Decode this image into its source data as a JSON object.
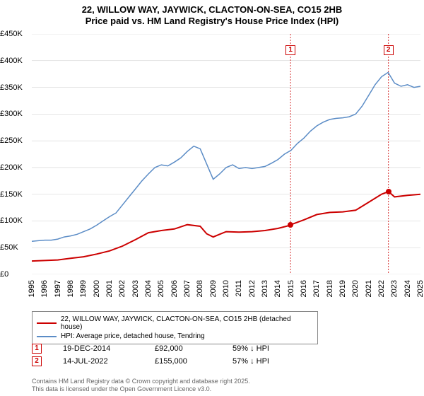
{
  "title": {
    "line1": "22, WILLOW WAY, JAYWICK, CLACTON-ON-SEA, CO15 2HB",
    "line2": "Price paid vs. HM Land Registry's House Price Index (HPI)",
    "fontsize": 13,
    "color": "#000000"
  },
  "chart": {
    "type": "line",
    "background_color": "#ffffff",
    "grid_color": "#cccccc",
    "ylim": [
      0,
      450000
    ],
    "ytick_step": 50000,
    "y_tick_labels": [
      "£0",
      "£50K",
      "£100K",
      "£150K",
      "£200K",
      "£250K",
      "£300K",
      "£350K",
      "£400K",
      "£450K"
    ],
    "x_years": [
      1995,
      1996,
      1997,
      1998,
      1999,
      2000,
      2001,
      2002,
      2003,
      2004,
      2005,
      2006,
      2007,
      2008,
      2009,
      2010,
      2011,
      2012,
      2013,
      2014,
      2015,
      2016,
      2017,
      2018,
      2019,
      2020,
      2021,
      2022,
      2023,
      2024,
      2025
    ],
    "label_fontsize": 11,
    "series": {
      "hpi": {
        "label": "HPI: Average price, detached house, Tendring",
        "color": "#5b8cc6",
        "line_width": 1.5,
        "data": [
          [
            1995,
            62000
          ],
          [
            1995.5,
            63000
          ],
          [
            1996,
            64000
          ],
          [
            1996.5,
            64000
          ],
          [
            1997,
            66000
          ],
          [
            1997.5,
            70000
          ],
          [
            1998,
            72000
          ],
          [
            1998.5,
            75000
          ],
          [
            1999,
            80000
          ],
          [
            1999.5,
            85000
          ],
          [
            2000,
            92000
          ],
          [
            2000.5,
            100000
          ],
          [
            2001,
            108000
          ],
          [
            2001.5,
            115000
          ],
          [
            2002,
            130000
          ],
          [
            2002.5,
            145000
          ],
          [
            2003,
            160000
          ],
          [
            2003.5,
            175000
          ],
          [
            2004,
            188000
          ],
          [
            2004.5,
            200000
          ],
          [
            2005,
            205000
          ],
          [
            2005.5,
            203000
          ],
          [
            2006,
            210000
          ],
          [
            2006.5,
            218000
          ],
          [
            2007,
            230000
          ],
          [
            2007.5,
            240000
          ],
          [
            2008,
            235000
          ],
          [
            2008.3,
            218000
          ],
          [
            2008.7,
            195000
          ],
          [
            2009,
            178000
          ],
          [
            2009.5,
            188000
          ],
          [
            2010,
            200000
          ],
          [
            2010.5,
            205000
          ],
          [
            2011,
            198000
          ],
          [
            2011.5,
            200000
          ],
          [
            2012,
            198000
          ],
          [
            2012.5,
            200000
          ],
          [
            2013,
            202000
          ],
          [
            2013.5,
            208000
          ],
          [
            2014,
            215000
          ],
          [
            2014.5,
            225000
          ],
          [
            2015,
            232000
          ],
          [
            2015.5,
            245000
          ],
          [
            2016,
            255000
          ],
          [
            2016.5,
            268000
          ],
          [
            2017,
            278000
          ],
          [
            2017.5,
            285000
          ],
          [
            2018,
            290000
          ],
          [
            2018.5,
            292000
          ],
          [
            2019,
            293000
          ],
          [
            2019.5,
            295000
          ],
          [
            2020,
            300000
          ],
          [
            2020.5,
            315000
          ],
          [
            2021,
            335000
          ],
          [
            2021.5,
            355000
          ],
          [
            2022,
            370000
          ],
          [
            2022.5,
            378000
          ],
          [
            2023,
            358000
          ],
          [
            2023.5,
            352000
          ],
          [
            2024,
            355000
          ],
          [
            2024.5,
            350000
          ],
          [
            2025,
            352000
          ]
        ]
      },
      "property": {
        "label": "22, WILLOW WAY, JAYWICK, CLACTON-ON-SEA, CO15 2HB (detached house)",
        "color": "#cc0000",
        "line_width": 2,
        "data": [
          [
            1995,
            25000
          ],
          [
            1996,
            26000
          ],
          [
            1997,
            27000
          ],
          [
            1998,
            30000
          ],
          [
            1999,
            33000
          ],
          [
            2000,
            38000
          ],
          [
            2001,
            44000
          ],
          [
            2002,
            53000
          ],
          [
            2003,
            65000
          ],
          [
            2004,
            78000
          ],
          [
            2005,
            82000
          ],
          [
            2006,
            85000
          ],
          [
            2007,
            93000
          ],
          [
            2008,
            90000
          ],
          [
            2008.5,
            76000
          ],
          [
            2009,
            70000
          ],
          [
            2009.5,
            75000
          ],
          [
            2010,
            80000
          ],
          [
            2011,
            79000
          ],
          [
            2012,
            80000
          ],
          [
            2013,
            82000
          ],
          [
            2014,
            86000
          ],
          [
            2014.97,
            92000
          ],
          [
            2015,
            93000
          ],
          [
            2016,
            102000
          ],
          [
            2017,
            112000
          ],
          [
            2018,
            116000
          ],
          [
            2019,
            117000
          ],
          [
            2020,
            120000
          ],
          [
            2021,
            135000
          ],
          [
            2022,
            150000
          ],
          [
            2022.53,
            155000
          ],
          [
            2023,
            145000
          ],
          [
            2024,
            148000
          ],
          [
            2025,
            150000
          ]
        ]
      }
    },
    "sale_points": [
      {
        "n": "1",
        "x": 2014.97,
        "y": 92000,
        "marker_y": 420000
      },
      {
        "n": "2",
        "x": 2022.53,
        "y": 155000,
        "marker_y": 420000
      }
    ],
    "sale_line_color": "#cc0000",
    "sale_line_dash": "2,2"
  },
  "legend": {
    "border_color": "#888888",
    "items": [
      {
        "color": "#cc0000",
        "key": "chart.series.property.label"
      },
      {
        "color": "#5b8cc6",
        "key": "chart.series.hpi.label"
      }
    ]
  },
  "sales_table": {
    "rows": [
      {
        "n": "1",
        "date": "19-DEC-2014",
        "price": "£92,000",
        "delta": "59% ↓ HPI"
      },
      {
        "n": "2",
        "date": "14-JUL-2022",
        "price": "£155,000",
        "delta": "57% ↓ HPI"
      }
    ]
  },
  "footer": {
    "line1": "Contains HM Land Registry data © Crown copyright and database right 2025.",
    "line2": "This data is licensed under the Open Government Licence v3.0.",
    "color": "#666666"
  }
}
